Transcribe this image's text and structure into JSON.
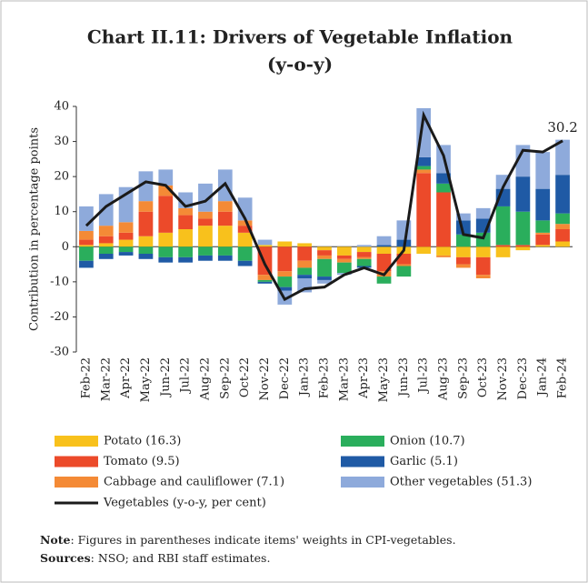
{
  "chart_data": {
    "type": "stacked_bar_line",
    "title": "Chart II.11: Drivers of Vegetable Inflation",
    "subtitle": "(y-o-y)",
    "y_label": "Contribution in percentage points",
    "categories": [
      "Feb-22",
      "Mar-22",
      "Apr-22",
      "May-22",
      "Jun-22",
      "Jul-22",
      "Aug-22",
      "Sep-22",
      "Oct-22",
      "Nov-22",
      "Dec-22",
      "Jan-23",
      "Feb-23",
      "Mar-23",
      "Apr-23",
      "May-23",
      "Jun-23",
      "Jul-23",
      "Aug-23",
      "Sep-23",
      "Oct-23",
      "Nov-23",
      "Dec-23",
      "Jan-24",
      "Feb-24"
    ],
    "series": [
      {
        "name": "Potato (16.3)",
        "color": "#f8c11c",
        "kind": "bar",
        "values": [
          0.5,
          1,
          2,
          3,
          4,
          5,
          6,
          6,
          4,
          0.5,
          1.5,
          1,
          -1,
          -2.5,
          -1.5,
          -2,
          -2,
          -2,
          -2.5,
          -3,
          -3,
          -3,
          -1,
          0.5,
          1.5
        ]
      },
      {
        "name": "Tomato (9.5)",
        "color": "#ec4a2a",
        "kind": "bar",
        "values": [
          1.5,
          2,
          2,
          7,
          10.5,
          4,
          2,
          4,
          2,
          -8,
          -7,
          -4,
          -1.5,
          -1,
          -1.5,
          -5,
          -3,
          21,
          15.5,
          -2,
          -5,
          0.5,
          0.5,
          3,
          3.5
        ]
      },
      {
        "name": "Cabbage and cauliflower (7.1)",
        "color": "#f48a36",
        "kind": "bar",
        "values": [
          2.5,
          3,
          3,
          3,
          3,
          2,
          2,
          3,
          1.5,
          -1.5,
          -1.5,
          -2,
          -1,
          -1,
          -0.5,
          -1.5,
          -0.5,
          1,
          -0.5,
          -1,
          -1,
          0,
          0,
          0.5,
          1.5
        ]
      },
      {
        "name": "Onion (10.7)",
        "color": "#2aae5c",
        "kind": "bar",
        "values": [
          -4,
          -2,
          -1.5,
          -2,
          -3,
          -3,
          -2.5,
          -2.5,
          -4,
          -0.5,
          -3,
          -2,
          -5,
          -3,
          -2,
          -2,
          -3,
          1,
          2.5,
          3.5,
          4,
          11,
          9.5,
          3.5,
          3
        ]
      },
      {
        "name": "Garlic (5.1)",
        "color": "#1f5aa5",
        "kind": "bar",
        "values": [
          -2,
          -1.5,
          -1,
          -1.5,
          -1.5,
          -1.5,
          -1.5,
          -1.5,
          -1.5,
          -0.5,
          -1,
          -1,
          -1,
          0,
          -0.5,
          0.5,
          2,
          2.5,
          3,
          4,
          4,
          5,
          10,
          9,
          11
        ]
      },
      {
        "name": "Other vegetables (51.3)",
        "color": "#8eaadb",
        "kind": "bar",
        "values": [
          7,
          9,
          10,
          8.5,
          4.5,
          4.5,
          8,
          9,
          6.5,
          1.5,
          -4,
          -4,
          -1,
          -0.5,
          0.5,
          2.5,
          5.5,
          14,
          8,
          2,
          3,
          4,
          9,
          10.5,
          10
        ]
      },
      {
        "name": "Vegetables (y-o-y, per cent)",
        "color": "#1a1a1a",
        "kind": "line",
        "values": [
          6,
          11.5,
          15,
          18.5,
          17.5,
          11.5,
          13,
          18,
          8,
          -5,
          -15,
          -12,
          -11.5,
          -8,
          -6,
          -8,
          -1,
          37.5,
          26,
          3.5,
          2.5,
          17,
          27.5,
          27,
          30.2
        ]
      }
    ],
    "ylim": [
      -30,
      40
    ],
    "yticks": [
      -30,
      -20,
      -10,
      0,
      10,
      20,
      30,
      40
    ],
    "note_label": "Note",
    "note": ": Figures in parentheses indicate items' weights in CPI-vegetables.",
    "sources_label": "Sources",
    "sources": ": NSO; and RBI staff estimates."
  }
}
